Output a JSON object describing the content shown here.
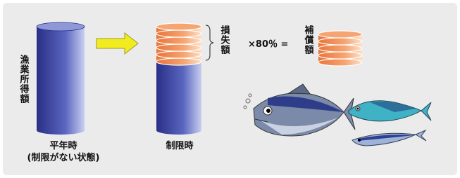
{
  "left": {
    "label": "漁業所得額",
    "caption": "平年時",
    "subcaption": "(制限がない状態)"
  },
  "middle": {
    "caption": "制限時",
    "loss_label": "損失額"
  },
  "formula": "×80％ =",
  "compensation_label": "補償額"
}
